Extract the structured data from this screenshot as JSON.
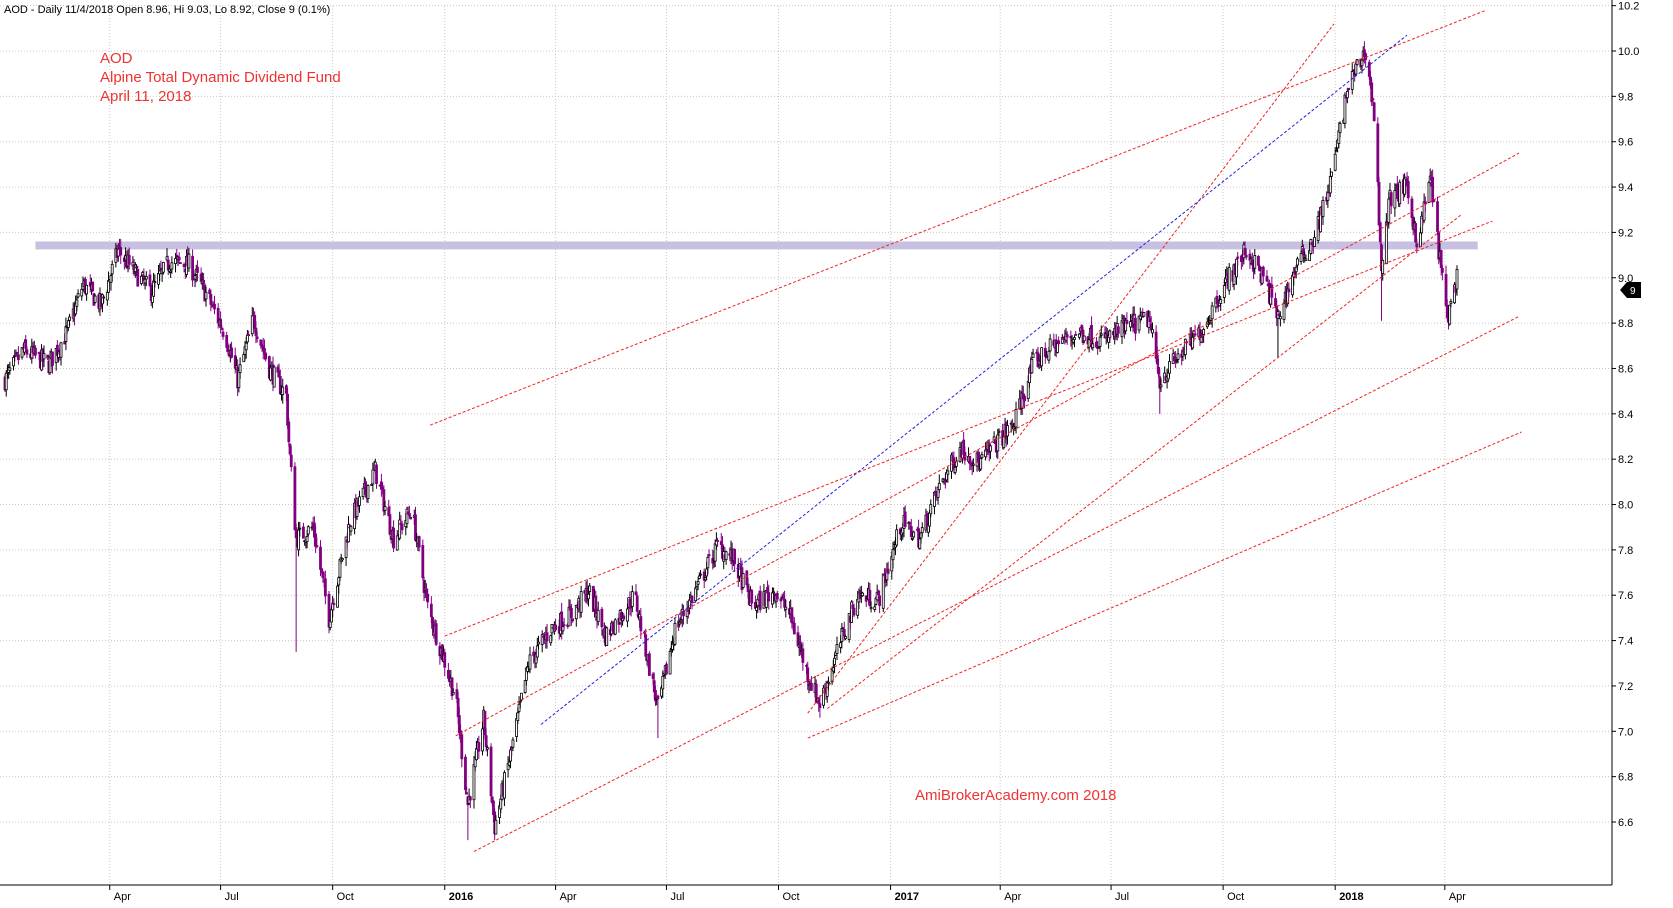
{
  "header": {
    "info_line": "AOD - Daily 11/4/2018 Open 8.96, Hi 9.03, Lo 8.92, Close 9 (0.1%)"
  },
  "annotations": {
    "ticker": "AOD",
    "fund_name": "Alpine Total Dynamic  Dividend Fund",
    "date": "April 11, 2018",
    "watermark": "AmiBrokerAcademy.com  2018"
  },
  "last_price_label": "9",
  "colors": {
    "candle_up": "#000000",
    "candle_down": "#800080",
    "trendline": "#ee2222",
    "blue_trendline": "#2222dd",
    "resistance_band": "#c8c0e0",
    "grid": "#c8c8c8",
    "annotation": "#ee3333"
  },
  "chart_data": {
    "type": "candlestick",
    "title": "",
    "xlabel": "",
    "ylabel": "",
    "x_range": [
      "2015-01-05",
      "2018-04-11"
    ],
    "ylim": [
      6.4,
      10.2
    ],
    "y_ticks": [
      6.6,
      6.8,
      7.0,
      7.2,
      7.4,
      7.6,
      7.8,
      8.0,
      8.2,
      8.4,
      8.6,
      8.8,
      9.0,
      9.2,
      9.4,
      9.6,
      9.8,
      10.0,
      10.2
    ],
    "x_ticks": [
      {
        "date": "2015-04-01",
        "label": "Apr",
        "bold": false
      },
      {
        "date": "2015-07-01",
        "label": "Jul",
        "bold": false
      },
      {
        "date": "2015-10-01",
        "label": "Oct",
        "bold": false
      },
      {
        "date": "2016-01-01",
        "label": "2016",
        "bold": true
      },
      {
        "date": "2016-04-01",
        "label": "Apr",
        "bold": false
      },
      {
        "date": "2016-07-01",
        "label": "Jul",
        "bold": false
      },
      {
        "date": "2016-10-01",
        "label": "Oct",
        "bold": false
      },
      {
        "date": "2017-01-01",
        "label": "2017",
        "bold": true
      },
      {
        "date": "2017-04-01",
        "label": "Apr",
        "bold": false
      },
      {
        "date": "2017-07-01",
        "label": "Jul",
        "bold": false
      },
      {
        "date": "2017-10-01",
        "label": "Oct",
        "bold": false
      },
      {
        "date": "2018-01-01",
        "label": "2018",
        "bold": true
      },
      {
        "date": "2018-04-01",
        "label": "Apr",
        "bold": false
      }
    ],
    "grid": true,
    "price_path": [
      [
        "2015-01-05",
        8.55
      ],
      [
        "2015-01-20",
        8.68
      ],
      [
        "2015-02-10",
        8.62
      ],
      [
        "2015-02-25",
        8.76
      ],
      [
        "2015-03-10",
        8.97
      ],
      [
        "2015-03-25",
        8.88
      ],
      [
        "2015-04-08",
        9.12
      ],
      [
        "2015-04-22",
        9.02
      ],
      [
        "2015-05-05",
        8.94
      ],
      [
        "2015-05-20",
        9.07
      ],
      [
        "2015-06-05",
        9.06
      ],
      [
        "2015-06-20",
        8.92
      ],
      [
        "2015-07-05",
        8.75
      ],
      [
        "2015-07-15",
        8.55
      ],
      [
        "2015-07-28",
        8.82
      ],
      [
        "2015-08-10",
        8.6
      ],
      [
        "2015-08-24",
        8.48
      ],
      [
        "2015-08-26",
        8.28
      ],
      [
        "2015-09-01",
        7.85
      ],
      [
        "2015-09-15",
        7.9
      ],
      [
        "2015-09-28",
        7.5
      ],
      [
        "2015-10-15",
        7.92
      ],
      [
        "2015-11-05",
        8.15
      ],
      [
        "2015-11-20",
        7.85
      ],
      [
        "2015-12-05",
        7.98
      ],
      [
        "2015-12-18",
        7.55
      ],
      [
        "2016-01-10",
        7.15
      ],
      [
        "2016-01-20",
        6.68
      ],
      [
        "2016-02-02",
        7.05
      ],
      [
        "2016-02-11",
        6.58
      ],
      [
        "2016-02-25",
        6.92
      ],
      [
        "2016-03-10",
        7.3
      ],
      [
        "2016-03-28",
        7.45
      ],
      [
        "2016-04-15",
        7.52
      ],
      [
        "2016-04-28",
        7.62
      ],
      [
        "2016-05-12",
        7.42
      ],
      [
        "2016-06-05",
        7.6
      ],
      [
        "2016-06-24",
        7.1
      ],
      [
        "2016-07-08",
        7.45
      ],
      [
        "2016-07-25",
        7.62
      ],
      [
        "2016-08-12",
        7.82
      ],
      [
        "2016-08-25",
        7.76
      ],
      [
        "2016-09-10",
        7.55
      ],
      [
        "2016-09-28",
        7.62
      ],
      [
        "2016-10-10",
        7.52
      ],
      [
        "2016-10-25",
        7.25
      ],
      [
        "2016-11-04",
        7.12
      ],
      [
        "2016-11-20",
        7.38
      ],
      [
        "2016-12-05",
        7.6
      ],
      [
        "2016-12-22",
        7.58
      ],
      [
        "2017-01-10",
        7.92
      ],
      [
        "2017-01-25",
        7.85
      ],
      [
        "2017-02-12",
        8.1
      ],
      [
        "2017-02-28",
        8.25
      ],
      [
        "2017-03-15",
        8.18
      ],
      [
        "2017-03-30",
        8.28
      ],
      [
        "2017-04-12",
        8.35
      ],
      [
        "2017-04-28",
        8.62
      ],
      [
        "2017-05-15",
        8.7
      ],
      [
        "2017-06-05",
        8.76
      ],
      [
        "2017-06-25",
        8.72
      ],
      [
        "2017-07-12",
        8.78
      ],
      [
        "2017-08-01",
        8.82
      ],
      [
        "2017-08-10",
        8.55
      ],
      [
        "2017-08-25",
        8.65
      ],
      [
        "2017-09-15",
        8.78
      ],
      [
        "2017-10-01",
        8.96
      ],
      [
        "2017-10-20",
        9.12
      ],
      [
        "2017-11-05",
        8.98
      ],
      [
        "2017-11-15",
        8.82
      ],
      [
        "2017-11-30",
        9.05
      ],
      [
        "2017-12-15",
        9.18
      ],
      [
        "2017-12-28",
        9.42
      ],
      [
        "2018-01-12",
        9.85
      ],
      [
        "2018-01-26",
        10.0
      ],
      [
        "2018-02-02",
        9.72
      ],
      [
        "2018-02-08",
        9.05
      ],
      [
        "2018-02-15",
        9.35
      ],
      [
        "2018-02-28",
        9.4
      ],
      [
        "2018-03-10",
        9.15
      ],
      [
        "2018-03-20",
        9.45
      ],
      [
        "2018-03-28",
        9.08
      ],
      [
        "2018-04-03",
        8.82
      ],
      [
        "2018-04-11",
        9.0
      ]
    ],
    "extreme_wicks": [
      {
        "date": "2015-09-01",
        "low": 7.35
      },
      {
        "date": "2016-01-20",
        "low": 6.52
      },
      {
        "date": "2016-02-11",
        "low": 6.52
      },
      {
        "date": "2016-06-24",
        "low": 6.97
      },
      {
        "date": "2016-11-04",
        "low": 7.06
      },
      {
        "date": "2017-08-10",
        "low": 8.4
      },
      {
        "date": "2017-11-15",
        "low": 8.65
      },
      {
        "date": "2018-02-08",
        "low": 8.81
      }
    ],
    "resistance_zone": {
      "from": "2015-01-30",
      "to": "2018-04-28",
      "low": 9.125,
      "high": 9.16
    },
    "trendlines": [
      {
        "color": "red",
        "start": [
          "2015-12-20",
          8.35
        ],
        "end": [
          "2018-05-05",
          10.18
        ]
      },
      {
        "color": "red",
        "start": [
          "2016-01-01",
          7.42
        ],
        "end": [
          "2018-05-10",
          9.25
        ]
      },
      {
        "color": "red",
        "start": [
          "2016-01-10",
          6.98
        ],
        "end": [
          "2018-06-01",
          9.55
        ]
      },
      {
        "color": "red",
        "start": [
          "2016-01-25",
          6.47
        ],
        "end": [
          "2018-06-01",
          8.83
        ]
      },
      {
        "color": "red",
        "start": [
          "2016-10-25",
          7.08
        ],
        "end": [
          "2017-12-31",
          10.12
        ]
      },
      {
        "color": "red",
        "start": [
          "2016-10-25",
          6.97
        ],
        "end": [
          "2018-06-03",
          8.32
        ]
      },
      {
        "color": "red",
        "start": [
          "2016-11-10",
          7.1
        ],
        "end": [
          "2018-04-15",
          9.28
        ]
      },
      {
        "color": "blue",
        "start": [
          "2016-03-20",
          7.03
        ],
        "end": [
          "2018-03-01",
          10.07
        ]
      }
    ]
  }
}
